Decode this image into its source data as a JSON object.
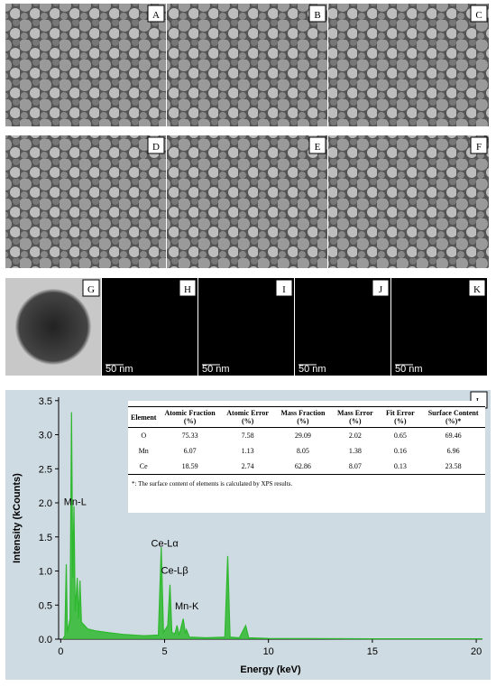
{
  "panels": [
    {
      "label": "A"
    },
    {
      "label": "B"
    },
    {
      "label": "C"
    },
    {
      "label": "D"
    },
    {
      "label": "E"
    },
    {
      "label": "F"
    },
    {
      "label": "G"
    },
    {
      "label": "H",
      "scale": "50 nm"
    },
    {
      "label": "I",
      "scale": "50 nm"
    },
    {
      "label": "J",
      "scale": "50 nm"
    },
    {
      "label": "K",
      "scale": "50 nm"
    }
  ],
  "chart_data": {
    "type": "line",
    "label": "L",
    "xlabel": "Energy (keV)",
    "ylabel": "Intensity (kCounts)",
    "xlim": [
      -0.1,
      20.3
    ],
    "ylim": [
      0,
      3.55
    ],
    "xticks": [
      0,
      5,
      10,
      15,
      20
    ],
    "yticks": [
      {
        "value": 0,
        "label": "0.0"
      },
      {
        "value": 0.5,
        "label": "0.5"
      },
      {
        "value": 1,
        "label": "1.0"
      },
      {
        "value": 1.5,
        "label": "1.5"
      },
      {
        "value": 2,
        "label": "2.0"
      },
      {
        "value": 2.5,
        "label": "2.5"
      },
      {
        "value": 3,
        "label": "3.0"
      },
      {
        "value": 3.5,
        "label": "3.5"
      }
    ],
    "series": [
      {
        "color": "#2eb82e",
        "x": [
          0.1,
          0.2,
          0.27,
          0.32,
          0.45,
          0.52,
          0.58,
          0.64,
          0.7,
          0.8,
          0.86,
          0.93,
          1.0,
          1.3,
          1.7,
          2.2,
          3,
          4,
          4.7,
          4.84,
          4.95,
          5.15,
          5.26,
          5.35,
          5.5,
          5.6,
          5.7,
          5.9,
          6.0,
          6.05,
          6.2,
          7,
          7.9,
          8.04,
          8.15,
          8.6,
          8.9,
          9.05,
          10,
          15,
          20.3
        ],
        "values": [
          0,
          0.05,
          1.1,
          0.1,
          0.3,
          3.33,
          0.9,
          1.95,
          0.4,
          0.9,
          0.3,
          0.86,
          0.25,
          0.15,
          0.12,
          0.1,
          0.07,
          0.05,
          0.06,
          1.35,
          0.1,
          0.2,
          0.8,
          0.1,
          0.08,
          0.2,
          0.06,
          0.3,
          0.08,
          0.14,
          0.03,
          0.02,
          0.03,
          1.22,
          0.03,
          0.02,
          0.2,
          0.02,
          0.01,
          0.005,
          0.005
        ]
      }
    ],
    "annotations": [
      {
        "text": "Mn-L",
        "x": 0.15,
        "y": 1.97
      },
      {
        "text": "Ce-Lα",
        "x": 4.35,
        "y": 1.36
      },
      {
        "text": "Ce-Lβ",
        "x": 4.83,
        "y": 0.96
      },
      {
        "text": "Mn-K",
        "x": 5.5,
        "y": 0.44
      }
    ]
  },
  "table": {
    "headers": [
      "Element",
      "Atomic Fraction (%)",
      "Atomic Error (%)",
      "Mass Fraction (%)",
      "Mass Error (%)",
      "Fit Error (%)",
      "Surface Content (%)*"
    ],
    "rows": [
      [
        "O",
        "75.33",
        "7.58",
        "29.09",
        "2.02",
        "0.65",
        "69.46"
      ],
      [
        "Mn",
        "6.07",
        "1.13",
        "8.05",
        "1.38",
        "0.16",
        "6.96"
      ],
      [
        "Ce",
        "18.59",
        "2.74",
        "62.86",
        "8.07",
        "0.13",
        "23.58"
      ]
    ],
    "note": "*: The surface content of elements is calculated by XPS results."
  }
}
